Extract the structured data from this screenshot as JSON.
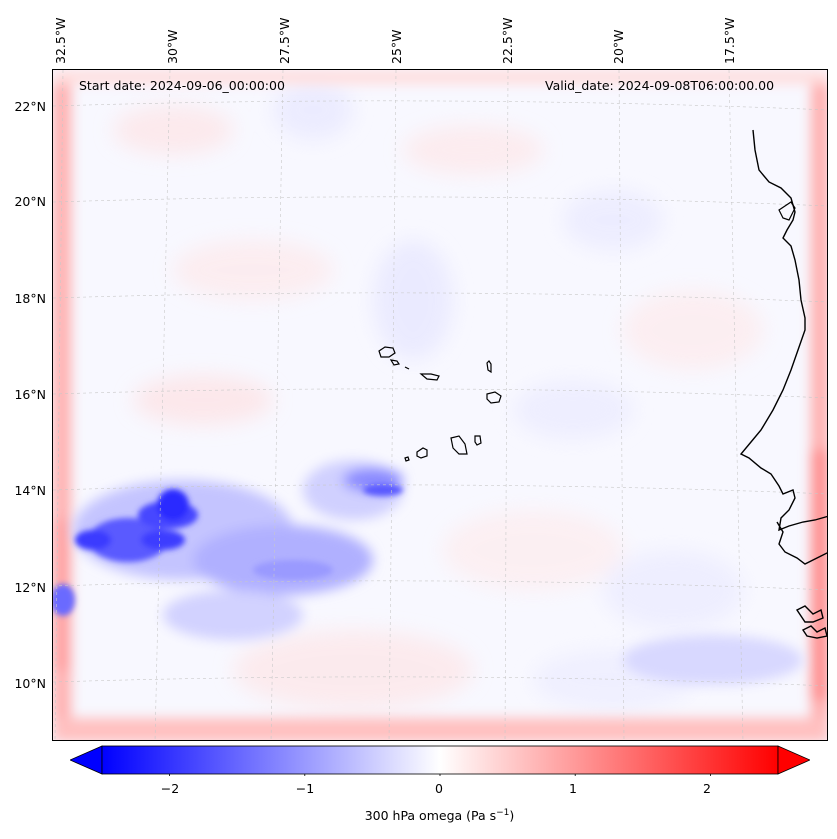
{
  "header": {
    "start_date": "Start date: 2024-09-06_00:00:00",
    "valid_date": "Valid_date: 2024-09-08T06:00:00.00"
  },
  "axes": {
    "longitude_ticks": [
      "32.5°W",
      "30°W",
      "27.5°W",
      "25°W",
      "22.5°W",
      "20°W",
      "17.5°W"
    ],
    "latitude_ticks": [
      "22°N",
      "20°N",
      "18°N",
      "16°N",
      "14°N",
      "12°N",
      "10°N"
    ]
  },
  "colorbar": {
    "ticks": [
      "−2",
      "−1",
      "0",
      "1",
      "2"
    ],
    "tick_values": [
      -2,
      -1,
      0,
      1,
      2
    ],
    "range": [
      -2.5,
      2.5
    ],
    "label_prefix": "300 hPa omega (Pa s",
    "label_sup": "−1",
    "label_suffix": ")",
    "colors": {
      "negative": "#0000ff",
      "neutral": "#ffffff",
      "positive": "#ff0000"
    }
  },
  "map": {
    "field": "300 hPa omega",
    "features": [
      "Cape Verde islands",
      "West African coastline"
    ],
    "colors": {
      "coastline": "#000000",
      "gridline": "#cccccc"
    }
  }
}
